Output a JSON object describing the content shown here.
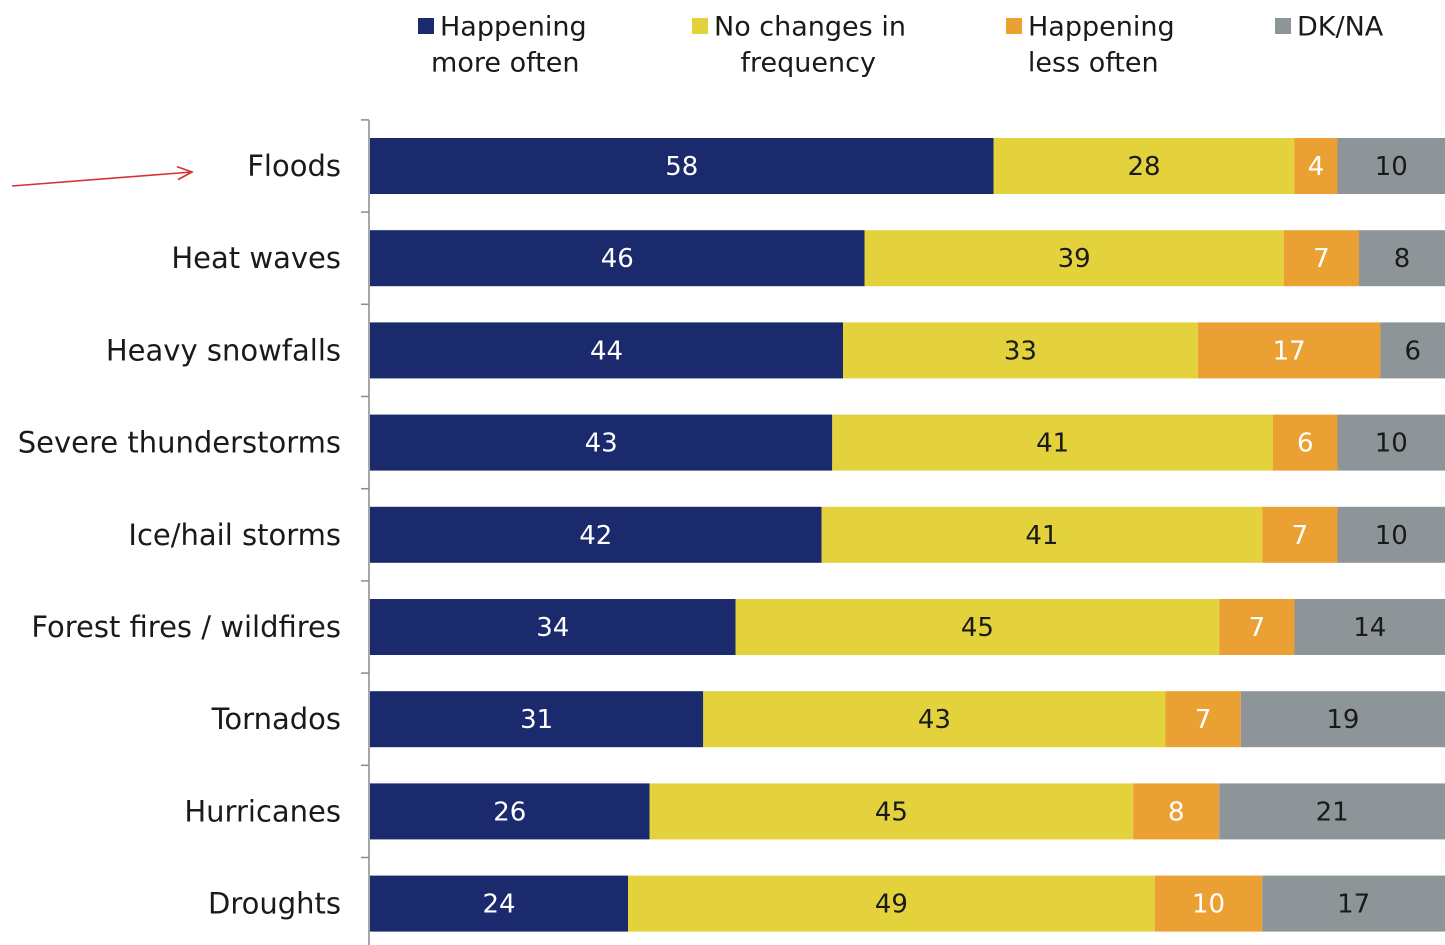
{
  "chart_data": {
    "type": "bar",
    "orientation": "horizontal",
    "stacked": true,
    "title": "",
    "xlabel": "",
    "ylabel": "",
    "xlim": [
      0,
      100
    ],
    "grid": false,
    "legend_position": "top",
    "categories": [
      "Floods",
      "Heat waves",
      "Heavy snowfalls",
      "Severe thunderstorms",
      "Ice/hail storms",
      "Forest fires / wildfires",
      "Tornados",
      "Hurricanes",
      "Droughts"
    ],
    "series": [
      {
        "name": "Happening more often",
        "legend_lines": [
          "Happening",
          "more often"
        ],
        "color": "#1a2a6c",
        "label_color": "#ffffff",
        "values": [
          58,
          46,
          44,
          43,
          42,
          34,
          31,
          26,
          24
        ]
      },
      {
        "name": "No changes in frequency",
        "legend_lines": [
          "No changes in",
          "frequency"
        ],
        "color": "#e3d23c",
        "label_color": "#1a1a1a",
        "values": [
          28,
          39,
          33,
          41,
          41,
          45,
          43,
          45,
          49
        ]
      },
      {
        "name": "Happening less often",
        "legend_lines": [
          "Happening",
          "less often"
        ],
        "color": "#eba034",
        "label_color": "#ffffff",
        "values": [
          4,
          7,
          17,
          6,
          7,
          7,
          7,
          8,
          10
        ]
      },
      {
        "name": "DK/NA",
        "legend_lines": [
          "DK/NA"
        ],
        "color": "#8e9598",
        "label_color": "#1a1a1a",
        "values": [
          10,
          8,
          6,
          10,
          10,
          14,
          19,
          21,
          17
        ]
      }
    ],
    "annotations": [
      {
        "type": "arrow",
        "target": "Floods",
        "color": "#d93030"
      }
    ]
  }
}
